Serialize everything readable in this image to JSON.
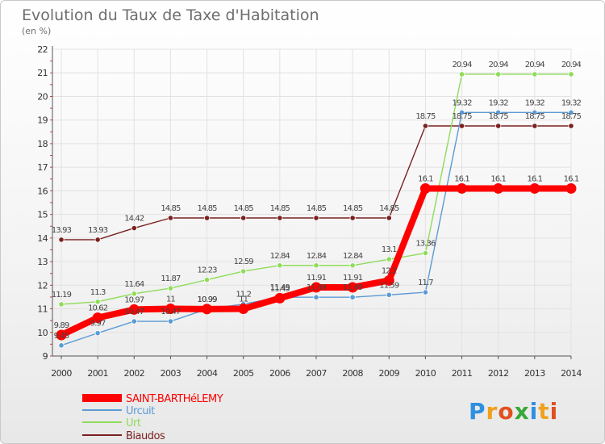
{
  "chart_data": {
    "type": "line",
    "title": "Evolution du Taux de Taxe d'Habitation",
    "subtitle": "(en %)",
    "xlabel": "",
    "ylabel": "",
    "ylim": [
      9,
      22
    ],
    "yticks": [
      "9",
      "10",
      "11",
      "12",
      "13",
      "14",
      "15",
      "16",
      "17",
      "18",
      "19",
      "20",
      "21",
      "22"
    ],
    "categories": [
      "2000",
      "2001",
      "2002",
      "2003",
      "2004",
      "2005",
      "2006",
      "2007",
      "2008",
      "2009",
      "2010",
      "2011",
      "2012",
      "2013",
      "2014"
    ],
    "grid": true,
    "legend_position": "bottom-left",
    "series": [
      {
        "name": "SAINT-BARTHéLEMY",
        "color": "#ff0000",
        "values": [
          9.89,
          10.62,
          10.97,
          11,
          10.99,
          11,
          11.45,
          11.91,
          11.91,
          12.2,
          16.1,
          16.1,
          16.1,
          16.1,
          16.1
        ],
        "labels": [
          "9.89",
          "10.62",
          "10.97",
          "11",
          "10.99",
          "11",
          "11.45",
          "11.91",
          "11.91",
          "12.2",
          "16.1",
          "16.1",
          "16.1",
          "16.1",
          "16.1"
        ]
      },
      {
        "name": "Urcuit",
        "color": "#5b9bd5",
        "values": [
          9.45,
          9.97,
          10.47,
          10.47,
          10.99,
          11.2,
          11.49,
          11.49,
          11.49,
          11.59,
          11.7,
          19.32,
          19.32,
          19.32,
          19.32
        ],
        "labels": [
          "9.45",
          "9.97",
          "10.47",
          "10.47",
          "10.99",
          "11.2",
          "11.49",
          "11.49",
          "11.49",
          "11.59",
          "11.7",
          "19.32",
          "19.32",
          "19.32",
          "19.32"
        ]
      },
      {
        "name": "Urt",
        "color": "#8fdc5a",
        "values": [
          11.19,
          11.3,
          11.64,
          11.87,
          12.23,
          12.59,
          12.84,
          12.84,
          12.84,
          13.1,
          13.36,
          20.94,
          20.94,
          20.94,
          20.94
        ],
        "labels": [
          "11.19",
          "11.3",
          "11.64",
          "11.87",
          "12.23",
          "12.59",
          "12.84",
          "12.84",
          "12.84",
          "13.1",
          "13.36",
          "20.94",
          "20.94",
          "20.94",
          "20.94"
        ]
      },
      {
        "name": "Biaudos",
        "color": "#7a2020",
        "values": [
          13.93,
          13.93,
          14.42,
          14.85,
          14.85,
          14.85,
          14.85,
          14.85,
          14.85,
          14.85,
          18.75,
          18.75,
          18.75,
          18.75,
          18.75
        ],
        "labels": [
          "13.93",
          "13.93",
          "14.42",
          "14.85",
          "14.85",
          "14.85",
          "14.85",
          "14.85",
          "14.85",
          "14.85",
          "18.75",
          "18.75",
          "18.75",
          "18.75",
          "18.75"
        ]
      }
    ]
  },
  "logo": {
    "text": "Proxiti",
    "letters": [
      {
        "ch": "P",
        "color": "#2f8fe0"
      },
      {
        "ch": "r",
        "color": "#f0a020"
      },
      {
        "ch": "o",
        "color": "#e05020"
      },
      {
        "ch": "x",
        "color": "#38a838"
      },
      {
        "ch": "i",
        "color": "#2f8fe0"
      },
      {
        "ch": "t",
        "color": "#f0a020"
      },
      {
        "ch": "i",
        "color": "#e05020"
      }
    ]
  }
}
